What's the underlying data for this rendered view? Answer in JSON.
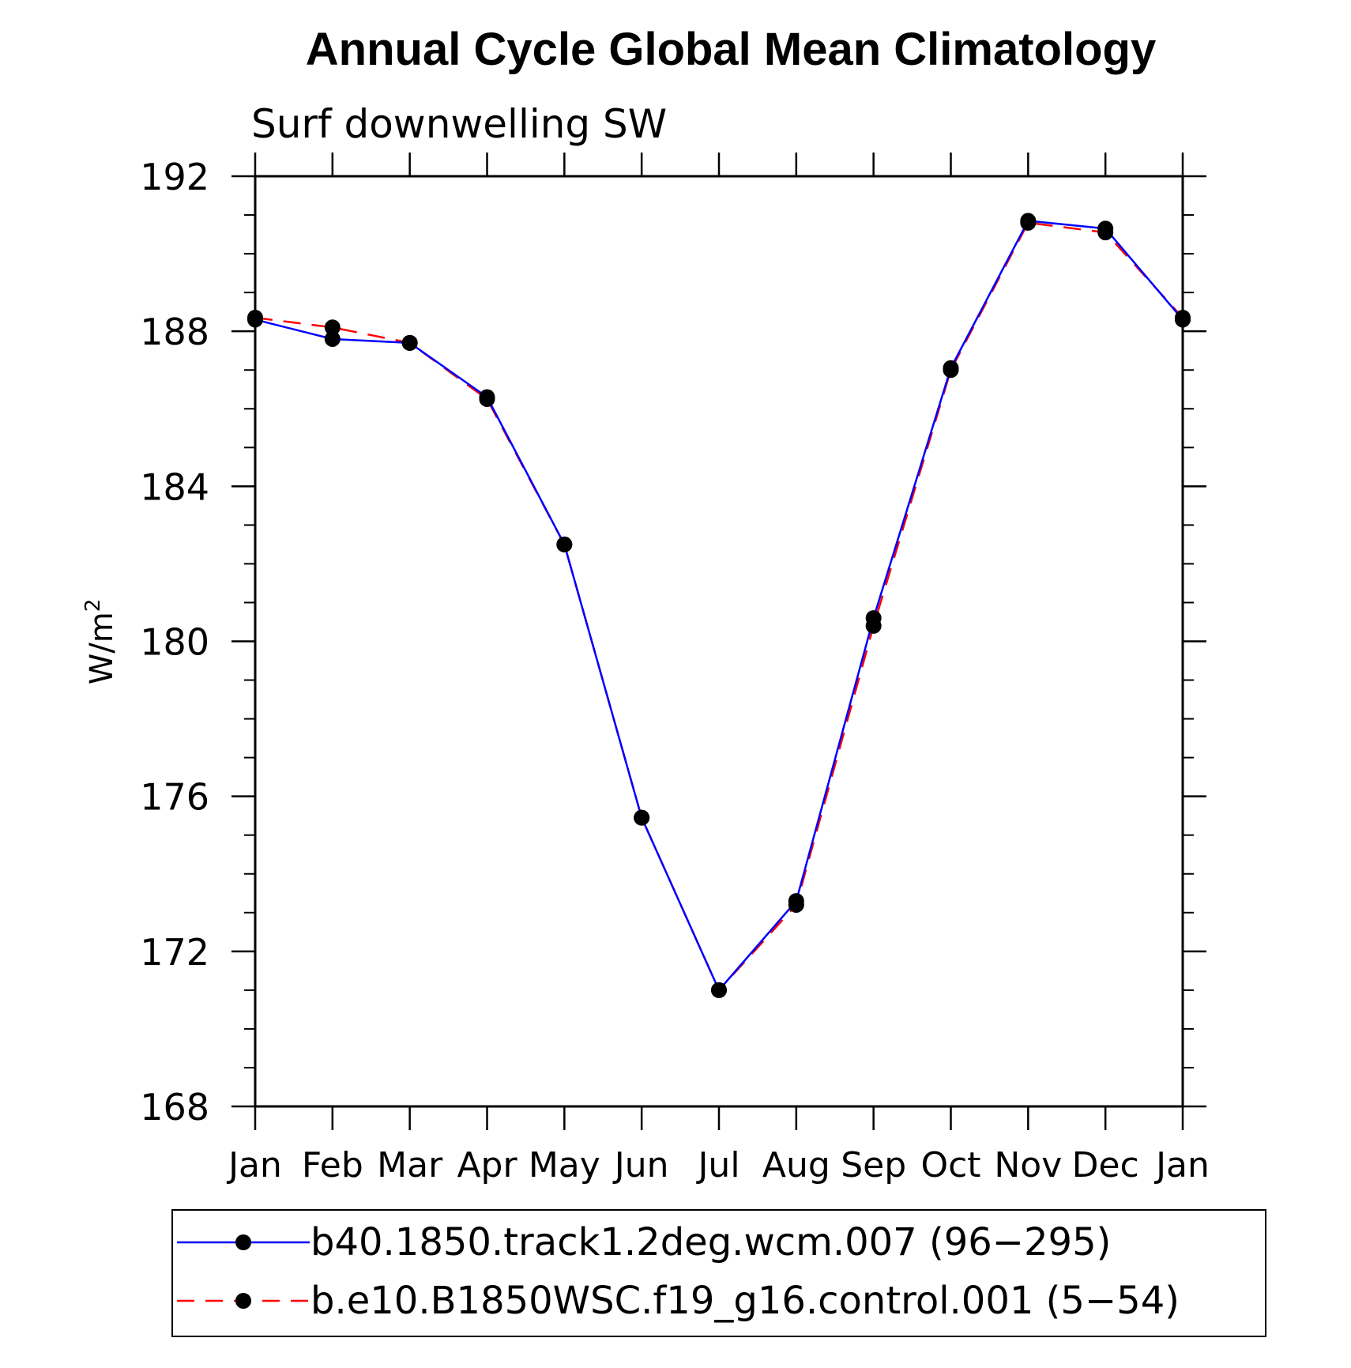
{
  "chart_data": {
    "type": "line",
    "title": "Annual Cycle Global Mean Climatology",
    "subtitle": "Surf downwelling SW",
    "ylabel": "W/m",
    "ylabel_superscript": "2",
    "xlabel": "",
    "ylim": [
      168,
      192
    ],
    "yticks": [
      168,
      172,
      176,
      180,
      184,
      188,
      192
    ],
    "ytick_labels": [
      "168",
      "172",
      "176",
      "180",
      "184",
      "188",
      "192"
    ],
    "categories": [
      "Jan",
      "Feb",
      "Mar",
      "Apr",
      "May",
      "Jun",
      "Jul",
      "Aug",
      "Sep",
      "Oct",
      "Nov",
      "Dec",
      "Jan"
    ],
    "series": [
      {
        "name": "b40.1850.track1.2deg.wcm.007 (96−295)",
        "color": "#0000ff",
        "dash": "solid",
        "marker": "filled-circle",
        "values": [
          188.3,
          187.8,
          187.7,
          186.3,
          182.5,
          175.45,
          171.0,
          173.3,
          180.6,
          187.05,
          190.85,
          190.65,
          188.3
        ]
      },
      {
        "name": "b.e10.B1850WSC.f19_g16.control.001 (5−54)",
        "color": "#ff0000",
        "dash": "dashed",
        "marker": "filled-circle",
        "values": [
          188.35,
          188.1,
          187.7,
          186.25,
          182.5,
          175.45,
          171.0,
          173.2,
          180.4,
          187.0,
          190.8,
          190.55,
          188.35
        ]
      }
    ],
    "legend_position": "bottom",
    "grid": false
  }
}
